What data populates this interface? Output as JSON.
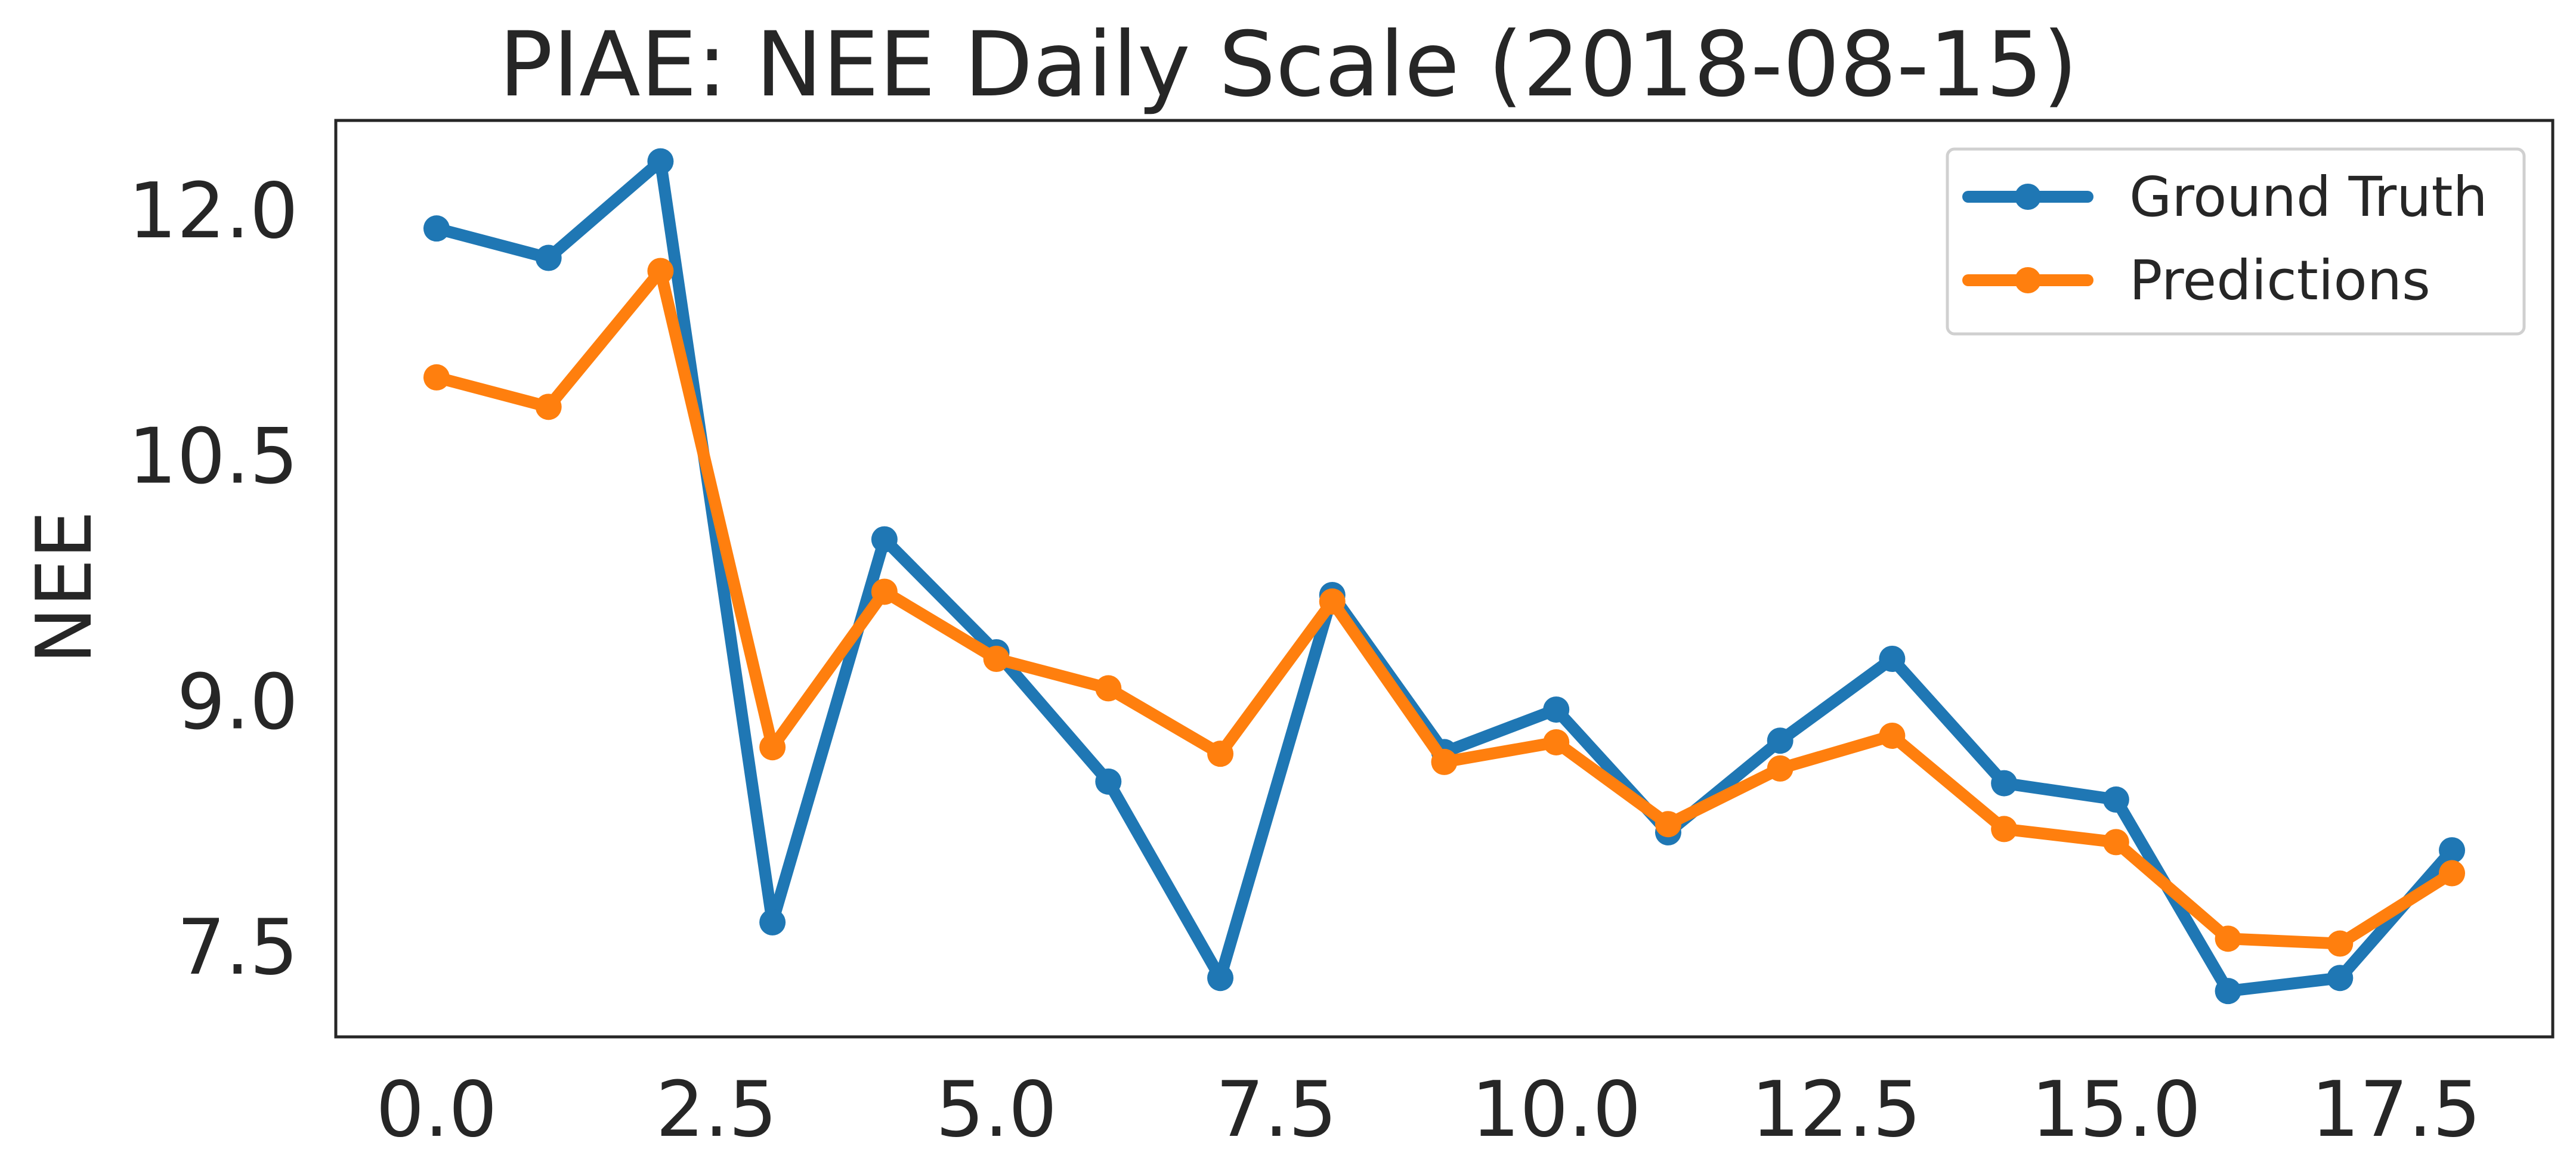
{
  "chart_data": {
    "type": "line",
    "title": "PIAE: NEE Daily Scale (2018-08-15)",
    "xlabel": "",
    "ylabel": "NEE",
    "xlim": [
      -0.9,
      18.9
    ],
    "ylim": [
      6.95,
      12.55
    ],
    "xticks": [
      "0.0",
      "2.5",
      "5.0",
      "7.5",
      "10.0",
      "12.5",
      "15.0",
      "17.5"
    ],
    "xtick_values": [
      0,
      2.5,
      5,
      7.5,
      10,
      12.5,
      15,
      17.5
    ],
    "yticks": [
      "7.5",
      "9.0",
      "10.5",
      "12.0"
    ],
    "ytick_values": [
      7.5,
      9.0,
      10.5,
      12.0
    ],
    "grid": false,
    "legend_position": "top-right",
    "x": [
      0,
      1,
      2,
      3,
      4,
      5,
      6,
      7,
      8,
      9,
      10,
      11,
      12,
      13,
      14,
      15,
      16,
      17,
      18
    ],
    "series": [
      {
        "name": "Ground Truth",
        "color": "#1f77b4",
        "values": [
          11.89,
          11.71,
          12.3,
          7.65,
          9.99,
          9.3,
          8.51,
          7.31,
          9.65,
          8.69,
          8.95,
          8.2,
          8.76,
          9.26,
          8.5,
          8.4,
          7.23,
          7.31,
          8.09
        ]
      },
      {
        "name": "Predictions",
        "color": "#ff7f0e",
        "values": [
          10.98,
          10.8,
          11.63,
          8.72,
          9.67,
          9.26,
          9.08,
          8.68,
          9.61,
          8.63,
          8.75,
          8.25,
          8.59,
          8.79,
          8.22,
          8.14,
          7.55,
          7.52,
          7.95
        ]
      }
    ]
  }
}
